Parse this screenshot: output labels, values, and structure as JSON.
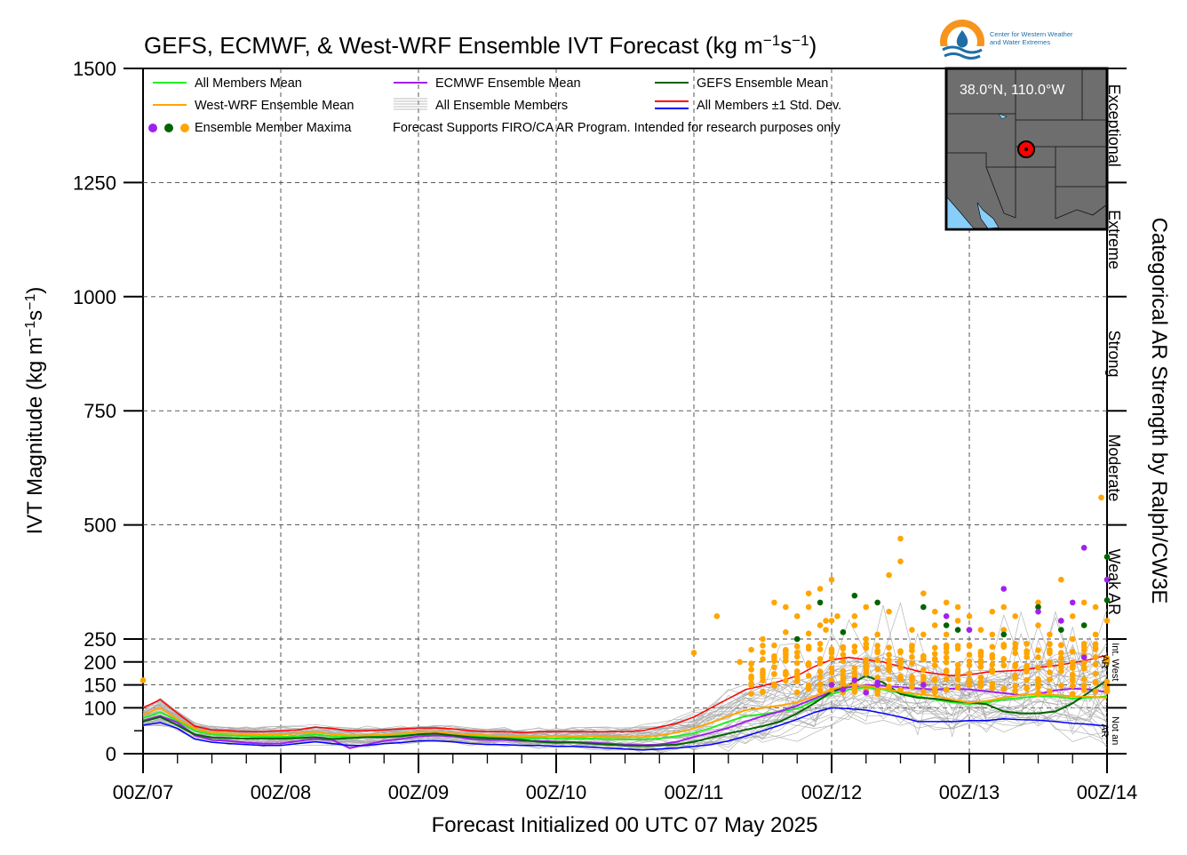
{
  "chart_data": {
    "type": "line",
    "title": "GEFS, ECMWF, & West-WRF Ensemble IVT Forecast (kg m",
    "title_units": {
      "exp1": "−1",
      "mid": "s",
      "exp2": "−1",
      "close": ")"
    },
    "ylabel": "IVT Magnitude (kg m",
    "ylabel_units": {
      "exp1": "−1",
      "mid": "s",
      "exp2": "−1",
      "close": ")"
    },
    "xlabel": "Forecast Initialized 00 UTC 07 May 2025",
    "right_label": "Categorical AR Strength by Ralph/CW3E",
    "xlim": [
      0,
      168
    ],
    "x_ticks": [
      {
        "x": 0,
        "label": "00Z/07"
      },
      {
        "x": 24,
        "label": "00Z/08"
      },
      {
        "x": 48,
        "label": "00Z/09"
      },
      {
        "x": 72,
        "label": "00Z/10"
      },
      {
        "x": 96,
        "label": "00Z/11"
      },
      {
        "x": 120,
        "label": "00Z/12"
      },
      {
        "x": 144,
        "label": "00Z/13"
      },
      {
        "x": 168,
        "label": "00Z/14"
      }
    ],
    "y_ticks": [
      {
        "v": 0,
        "label": "0"
      },
      {
        "v": 100,
        "label": "100"
      },
      {
        "v": 150,
        "label": "150"
      },
      {
        "v": 200,
        "label": "200"
      },
      {
        "v": 250,
        "label": "250"
      },
      {
        "v": 500,
        "label": "500"
      },
      {
        "v": 750,
        "label": "750"
      },
      {
        "v": 1000,
        "label": "1000"
      },
      {
        "v": 1250,
        "label": "1250"
      },
      {
        "v": 1500,
        "label": "1500"
      }
    ],
    "categories": [
      {
        "from": 1250,
        "to": 1500,
        "label": "Exceptional"
      },
      {
        "from": 1000,
        "to": 1250,
        "label": "Extreme"
      },
      {
        "from": 750,
        "to": 1000,
        "label": "Strong"
      },
      {
        "from": 500,
        "to": 750,
        "label": "Moderate"
      },
      {
        "from": 250,
        "to": 500,
        "label": "Weak AR"
      },
      {
        "from": 150,
        "to": 250,
        "label": "Int. West AR"
      },
      {
        "from": 0,
        "to": 100,
        "label": "Not an AR"
      }
    ],
    "legend": [
      {
        "label": "All Members Mean",
        "color": "#22ee22",
        "kind": "line"
      },
      {
        "label": "ECMWF Ensemble Mean",
        "color": "#a020f0",
        "kind": "line"
      },
      {
        "label": "GEFS Ensemble Mean",
        "color": "#006400",
        "kind": "line"
      },
      {
        "label": "West-WRF Ensemble Mean",
        "color": "#ffa500",
        "kind": "line"
      },
      {
        "label": "All Ensemble Members",
        "color": "#aaaaaa",
        "kind": "multi"
      },
      {
        "label": "All Members ±1 Std. Dev.",
        "color": "#ff0000",
        "color2": "#0000ff",
        "kind": "dual"
      },
      {
        "label": "Ensemble Member Maxima",
        "colors": [
          "#a020f0",
          "#006400",
          "#ffa500"
        ],
        "kind": "dots"
      },
      {
        "label": "Forecast Supports FIRO/CA AR Program. Intended for research purposes only",
        "kind": "note"
      }
    ],
    "inset_map": {
      "label": "38.0°N, 110.0°W",
      "land_color": "#6e6e6e",
      "water_color": "#87cefa",
      "marker_color": "#ff0000"
    },
    "logo": {
      "line1": "Center for Western Weather",
      "line2": "and Water Extremes",
      "color": "#f7941d",
      "color2": "#1f6fa6"
    },
    "x": [
      0,
      3,
      6,
      9,
      12,
      15,
      18,
      21,
      24,
      27,
      30,
      33,
      36,
      39,
      42,
      45,
      48,
      51,
      54,
      57,
      60,
      63,
      66,
      69,
      72,
      75,
      78,
      81,
      84,
      87,
      90,
      93,
      96,
      99,
      102,
      105,
      108,
      111,
      114,
      117,
      120,
      123,
      126,
      129,
      132,
      135,
      138,
      141,
      144,
      147,
      150,
      153,
      156,
      159,
      162,
      165,
      168
    ],
    "series": [
      {
        "name": "All Members Mean",
        "color": "#22ee22",
        "width": 2.0,
        "values": [
          78,
          90,
          72,
          50,
          42,
          40,
          38,
          37,
          37,
          38,
          42,
          38,
          36,
          36,
          38,
          40,
          42,
          42,
          40,
          38,
          36,
          36,
          34,
          34,
          33,
          34,
          33,
          32,
          31,
          31,
          33,
          38,
          45,
          56,
          70,
          82,
          86,
          92,
          98,
          115,
          130,
          140,
          145,
          140,
          132,
          125,
          118,
          112,
          108,
          112,
          118,
          122,
          125,
          125,
          120,
          122,
          125
        ]
      },
      {
        "name": "ECMWF Ensemble Mean",
        "color": "#a020f0",
        "width": 2.0,
        "values": [
          72,
          82,
          68,
          40,
          30,
          28,
          24,
          22,
          22,
          28,
          32,
          30,
          12,
          20,
          28,
          32,
          38,
          40,
          38,
          32,
          30,
          30,
          28,
          28,
          26,
          25,
          24,
          22,
          20,
          19,
          20,
          26,
          36,
          46,
          56,
          70,
          82,
          92,
          105,
          120,
          135,
          145,
          150,
          148,
          145,
          142,
          140,
          142,
          140,
          136,
          132,
          128,
          130,
          138,
          142,
          140,
          134
        ]
      },
      {
        "name": "GEFS Ensemble Mean",
        "color": "#006400",
        "width": 2.0,
        "values": [
          70,
          80,
          62,
          42,
          35,
          34,
          33,
          33,
          33,
          34,
          36,
          32,
          34,
          36,
          36,
          38,
          42,
          44,
          40,
          36,
          34,
          33,
          30,
          26,
          24,
          25,
          22,
          20,
          18,
          17,
          18,
          20,
          26,
          35,
          44,
          52,
          60,
          70,
          88,
          110,
          135,
          150,
          170,
          155,
          130,
          122,
          120,
          115,
          112,
          108,
          92,
          88,
          88,
          92,
          110,
          135,
          160
        ]
      },
      {
        "name": "West-WRF Ensemble Mean",
        "color": "#ffa500",
        "width": 2.0,
        "values": [
          85,
          100,
          75,
          55,
          45,
          44,
          42,
          42,
          42,
          44,
          48,
          42,
          40,
          40,
          42,
          44,
          48,
          48,
          44,
          42,
          40,
          38,
          38,
          38,
          38,
          38,
          38,
          36,
          36,
          36,
          40,
          46,
          55,
          68,
          82,
          95,
          100,
          105,
          112,
          125,
          140,
          150,
          148,
          142,
          135,
          130,
          126,
          118,
          112,
          115,
          122,
          128,
          130,
          128,
          125,
          124,
          122
        ]
      },
      {
        "name": "All Members ±1 Std. Dev.",
        "color": "#ff0000",
        "width": 1.5,
        "values": [
          100,
          118,
          88,
          60,
          52,
          50,
          48,
          48,
          50,
          52,
          58,
          55,
          50,
          50,
          52,
          54,
          56,
          56,
          54,
          50,
          48,
          48,
          46,
          48,
          48,
          48,
          48,
          48,
          48,
          50,
          58,
          66,
          80,
          100,
          120,
          140,
          148,
          158,
          170,
          190,
          205,
          210,
          205,
          200,
          190,
          180,
          175,
          170,
          172,
          178,
          180,
          182,
          188,
          192,
          198,
          205,
          215
        ]
      },
      {
        "name": "All Members −1 Std. Dev.",
        "color": "#0000ff",
        "width": 1.5,
        "values": [
          62,
          68,
          55,
          32,
          25,
          22,
          20,
          18,
          18,
          22,
          26,
          22,
          18,
          18,
          22,
          24,
          28,
          28,
          26,
          22,
          20,
          20,
          18,
          18,
          16,
          16,
          14,
          12,
          10,
          8,
          10,
          12,
          16,
          20,
          28,
          38,
          50,
          62,
          75,
          90,
          100,
          98,
          95,
          88,
          80,
          70,
          70,
          70,
          72,
          72,
          76,
          74,
          73,
          70,
          66,
          64,
          60
        ]
      }
    ],
    "maxima": {
      "westwrf": [
        [
          112,
          320
        ],
        [
          110,
          330
        ],
        [
          116,
          350
        ],
        [
          114,
          300
        ],
        [
          118,
          360
        ],
        [
          116,
          320
        ],
        [
          119,
          290
        ],
        [
          119,
          270
        ],
        [
          120,
          290
        ],
        [
          121,
          300
        ],
        [
          120,
          380
        ],
        [
          124,
          300
        ],
        [
          126,
          320
        ],
        [
          130,
          310
        ],
        [
          130,
          390
        ],
        [
          132,
          420
        ],
        [
          132,
          470
        ],
        [
          136,
          350
        ],
        [
          138,
          310
        ],
        [
          140,
          330
        ],
        [
          142,
          320
        ],
        [
          142,
          290
        ],
        [
          144,
          300
        ],
        [
          148,
          310
        ],
        [
          150,
          320
        ],
        [
          152,
          300
        ],
        [
          156,
          280
        ],
        [
          156,
          330
        ],
        [
          160,
          380
        ],
        [
          162,
          300
        ],
        [
          164,
          330
        ],
        [
          166,
          320
        ],
        [
          167,
          560
        ],
        [
          150,
          270
        ],
        [
          146,
          270
        ],
        [
          148,
          260
        ],
        [
          152,
          230
        ],
        [
          154,
          240
        ],
        [
          158,
          260
        ],
        [
          160,
          290
        ],
        [
          162,
          250
        ],
        [
          166,
          260
        ],
        [
          168,
          290
        ],
        [
          124,
          280
        ],
        [
          126,
          250
        ],
        [
          128,
          260
        ],
        [
          134,
          270
        ],
        [
          136,
          260
        ],
        [
          138,
          280
        ],
        [
          140,
          260
        ],
        [
          144,
          270
        ],
        [
          108,
          250
        ],
        [
          104,
          200
        ],
        [
          100,
          300
        ],
        [
          96,
          220
        ],
        [
          0,
          160
        ],
        [
          112,
          265
        ],
        [
          116,
          262
        ],
        [
          118,
          280
        ],
        [
          122,
          265
        ]
      ],
      "gefs": [
        [
          114,
          250
        ],
        [
          118,
          330
        ],
        [
          124,
          345
        ],
        [
          128,
          330
        ],
        [
          136,
          320
        ],
        [
          140,
          280
        ],
        [
          142,
          270
        ],
        [
          150,
          260
        ],
        [
          156,
          320
        ],
        [
          160,
          270
        ],
        [
          164,
          280
        ],
        [
          168,
          430
        ],
        [
          168,
          335
        ],
        [
          122,
          265
        ]
      ],
      "ecmwf": [
        [
          120,
          150
        ],
        [
          122,
          140
        ],
        [
          124,
          160
        ],
        [
          128,
          155
        ],
        [
          136,
          150
        ],
        [
          140,
          300
        ],
        [
          144,
          270
        ],
        [
          150,
          360
        ],
        [
          156,
          310
        ],
        [
          160,
          290
        ],
        [
          162,
          330
        ],
        [
          164,
          450
        ],
        [
          168,
          380
        ],
        [
          164,
          210
        ],
        [
          128,
          150
        ],
        [
          126,
          133
        ]
      ],
      "westwrf_cluster_x": [
        106,
        108,
        110,
        112,
        114,
        116,
        118,
        120,
        122,
        124,
        126,
        128,
        130,
        132,
        134,
        136,
        138,
        140,
        142,
        144,
        146,
        148,
        150,
        152,
        154,
        156,
        158,
        160,
        162,
        164,
        166,
        168
      ]
    },
    "members_spread": {
      "count": 40,
      "note": "All Ensemble Members grey lines around ensemble mean"
    },
    "ylim": [
      0,
      1500
    ]
  }
}
